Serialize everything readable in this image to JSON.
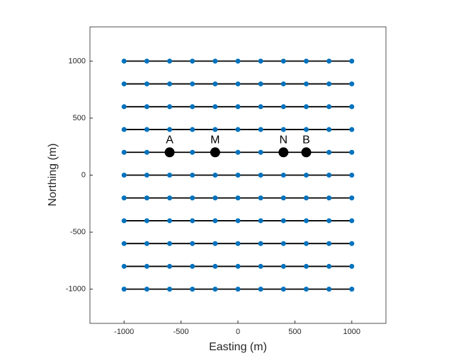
{
  "chart_data": {
    "type": "line",
    "xlabel": "Easting (m)",
    "ylabel": "Northing (m)",
    "xlim": [
      -1300,
      1300
    ],
    "ylim": [
      -1300,
      1300
    ],
    "xticks": [
      -1000,
      -500,
      0,
      500,
      1000
    ],
    "yticks": [
      -1000,
      -500,
      0,
      500,
      1000
    ],
    "line_color": "#000000",
    "marker_color": "#0072bd",
    "x": [
      -1000,
      -800,
      -600,
      -400,
      -200,
      0,
      200,
      400,
      600,
      800,
      1000
    ],
    "series": [
      {
        "values": [
          1000,
          1000,
          1000,
          1000,
          1000,
          1000,
          1000,
          1000,
          1000,
          1000,
          1000
        ]
      },
      {
        "values": [
          800,
          800,
          800,
          800,
          800,
          800,
          800,
          800,
          800,
          800,
          800
        ]
      },
      {
        "values": [
          600,
          600,
          600,
          600,
          600,
          600,
          600,
          600,
          600,
          600,
          600
        ]
      },
      {
        "values": [
          400,
          400,
          400,
          400,
          400,
          400,
          400,
          400,
          400,
          400,
          400
        ]
      },
      {
        "values": [
          200,
          200,
          200,
          200,
          200,
          200,
          200,
          200,
          200,
          200,
          200
        ]
      },
      {
        "values": [
          0,
          0,
          0,
          0,
          0,
          0,
          0,
          0,
          0,
          0,
          0
        ]
      },
      {
        "values": [
          -200,
          -200,
          -200,
          -200,
          -200,
          -200,
          -200,
          -200,
          -200,
          -200,
          -200
        ]
      },
      {
        "values": [
          -400,
          -400,
          -400,
          -400,
          -400,
          -400,
          -400,
          -400,
          -400,
          -400,
          -400
        ]
      },
      {
        "values": [
          -600,
          -600,
          -600,
          -600,
          -600,
          -600,
          -600,
          -600,
          -600,
          -600,
          -600
        ]
      },
      {
        "values": [
          -800,
          -800,
          -800,
          -800,
          -800,
          -800,
          -800,
          -800,
          -800,
          -800,
          -800
        ]
      },
      {
        "values": [
          -1000,
          -1000,
          -1000,
          -1000,
          -1000,
          -1000,
          -1000,
          -1000,
          -1000,
          -1000,
          -1000
        ]
      }
    ],
    "electrodes": {
      "labels": [
        "A",
        "M",
        "N",
        "B"
      ],
      "x": [
        -600,
        -200,
        400,
        600
      ],
      "y": [
        200,
        200,
        200,
        200
      ],
      "color": "#000000"
    }
  }
}
